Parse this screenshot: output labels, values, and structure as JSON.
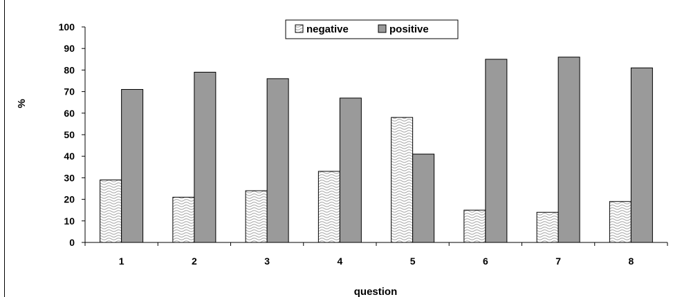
{
  "chart_data": {
    "type": "bar",
    "xlabel": "question",
    "ylabel": "%",
    "ylim": [
      0,
      100
    ],
    "yticks": [
      0,
      10,
      20,
      30,
      40,
      50,
      60,
      70,
      80,
      90,
      100
    ],
    "categories": [
      "1",
      "2",
      "3",
      "4",
      "5",
      "6",
      "7",
      "8"
    ],
    "series": [
      {
        "name": "negative",
        "values": [
          29,
          21,
          24,
          33,
          58,
          15,
          14,
          19
        ]
      },
      {
        "name": "positive",
        "values": [
          71,
          79,
          76,
          67,
          41,
          85,
          86,
          81
        ]
      }
    ],
    "legend": "top-center",
    "grid": false,
    "colors": {
      "negative": "#ffffff",
      "negative_pattern": "#9a9a9a",
      "positive": "#9a9a9a"
    }
  }
}
